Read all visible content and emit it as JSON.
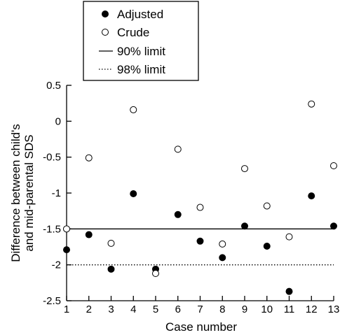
{
  "chart_data": {
    "type": "scatter",
    "title": "",
    "xlabel": "Case number",
    "ylabel_lines": [
      "Difference between child's",
      "and mid-parental SDS"
    ],
    "xlim": [
      1,
      13
    ],
    "ylim": [
      -2.5,
      0.5
    ],
    "xticks": [
      1,
      2,
      3,
      4,
      5,
      6,
      7,
      8,
      9,
      10,
      11,
      12,
      13
    ],
    "yticks": [
      0.5,
      0,
      -0.5,
      -1,
      -1.5,
      -2,
      -2.5
    ],
    "ytick_labels": [
      "0.5",
      "0",
      "-0.5",
      "-1",
      "-1.5",
      "-2",
      "-2.5"
    ],
    "grid": false,
    "legend_position": "top-left",
    "legend": {
      "adjusted": "Adjusted",
      "crude": "Crude",
      "limit90": "90% limit",
      "limit98": "98% limit"
    },
    "series": [
      {
        "name": "Adjusted",
        "marker": "filled-circle",
        "x": [
          1,
          2,
          3,
          4,
          5,
          6,
          7,
          8,
          9,
          10,
          11,
          12,
          13
        ],
        "y": [
          -1.79,
          -1.58,
          -2.06,
          -1.01,
          -2.06,
          -1.3,
          -1.67,
          -1.9,
          -1.46,
          -1.74,
          -2.37,
          -1.04,
          -1.46
        ]
      },
      {
        "name": "Crude",
        "marker": "open-circle",
        "x": [
          1,
          2,
          3,
          4,
          5,
          6,
          7,
          8,
          9,
          10,
          11,
          12,
          13
        ],
        "y": [
          -1.5,
          -0.51,
          -1.7,
          0.16,
          -2.12,
          -0.39,
          -1.2,
          -1.71,
          -0.66,
          -1.18,
          -1.61,
          0.24,
          -0.62
        ]
      }
    ],
    "reference_lines": [
      {
        "name": "90% limit",
        "y": -1.5,
        "style": "solid"
      },
      {
        "name": "98% limit",
        "y": -2.0,
        "style": "dotted"
      }
    ],
    "colors": {
      "ink": "#000000",
      "background": "#ffffff"
    }
  }
}
